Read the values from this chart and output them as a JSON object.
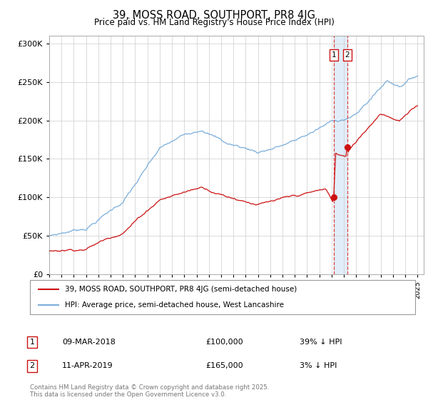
{
  "title_line1": "39, MOSS ROAD, SOUTHPORT, PR8 4JG",
  "title_line2": "Price paid vs. HM Land Registry's House Price Index (HPI)",
  "ylim": [
    0,
    310000
  ],
  "xlim_start": 1995.0,
  "xlim_end": 2025.5,
  "legend_line1": "39, MOSS ROAD, SOUTHPORT, PR8 4JG (semi-detached house)",
  "legend_line2": "HPI: Average price, semi-detached house, West Lancashire",
  "annotation1": {
    "num": "1",
    "date": "09-MAR-2018",
    "price": "£100,000",
    "pct": "39% ↓ HPI"
  },
  "annotation2": {
    "num": "2",
    "date": "11-APR-2019",
    "price": "£165,000",
    "pct": "3% ↓ HPI"
  },
  "footer": "Contains HM Land Registry data © Crown copyright and database right 2025.\nThis data is licensed under the Open Government Licence v3.0.",
  "hpi_color": "#7aadda",
  "price_color": "#cc1111",
  "marker1_x": 2018.18,
  "marker1_y": 100000,
  "marker2_x": 2019.28,
  "marker2_y": 165000,
  "shade_x1": 2018.18,
  "shade_x2": 2019.28,
  "background_color": "#ffffff",
  "grid_color": "#cccccc"
}
